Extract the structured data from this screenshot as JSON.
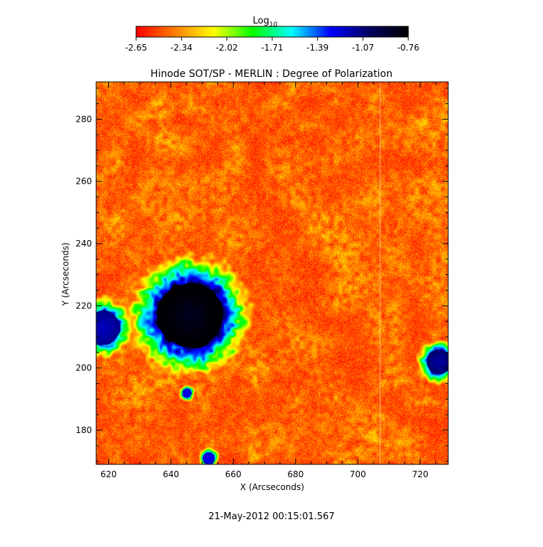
{
  "chart_data": {
    "type": "heatmap",
    "title": "Hinode SOT/SP - MERLIN : Degree of Polarization",
    "xlabel": "X (Arcseconds)",
    "ylabel": "Y (Arcseconds)",
    "xlim": [
      616,
      729
    ],
    "ylim": [
      169,
      292
    ],
    "x_ticks": [
      620,
      640,
      660,
      680,
      700,
      720
    ],
    "y_ticks": [
      180,
      200,
      220,
      240,
      260,
      280
    ],
    "colorbar": {
      "label_base": "Log",
      "label_sub": "10",
      "min": -2.65,
      "max": -0.76,
      "ticks": [
        "-2.65",
        "-2.34",
        "-2.02",
        "-1.71",
        "-1.39",
        "-1.07",
        "-0.76"
      ],
      "colormap": [
        "#ff0000",
        "#ff8000",
        "#ffff00",
        "#00ff00",
        "#00ffff",
        "#0000ff",
        "#000060",
        "#000000"
      ]
    },
    "features": [
      {
        "name": "sunspot",
        "x": 646,
        "y": 217,
        "radius_arcsec": 10.5,
        "level": -0.85
      },
      {
        "name": "pore",
        "x": 618,
        "y": 213,
        "radius_arcsec": 5.5,
        "level": -1.2
      },
      {
        "name": "pore",
        "x": 726,
        "y": 202,
        "radius_arcsec": 4,
        "level": -1.15
      },
      {
        "name": "pore",
        "x": 645,
        "y": 192,
        "radius_arcsec": 1.5,
        "level": -1.3
      },
      {
        "name": "pore",
        "x": 652,
        "y": 171,
        "radius_arcsec": 2,
        "level": -1.3
      }
    ],
    "grid": false,
    "legend": "colorbar-top"
  },
  "footer": {
    "timestamp": "21-May-2012 00:15:01.567"
  }
}
